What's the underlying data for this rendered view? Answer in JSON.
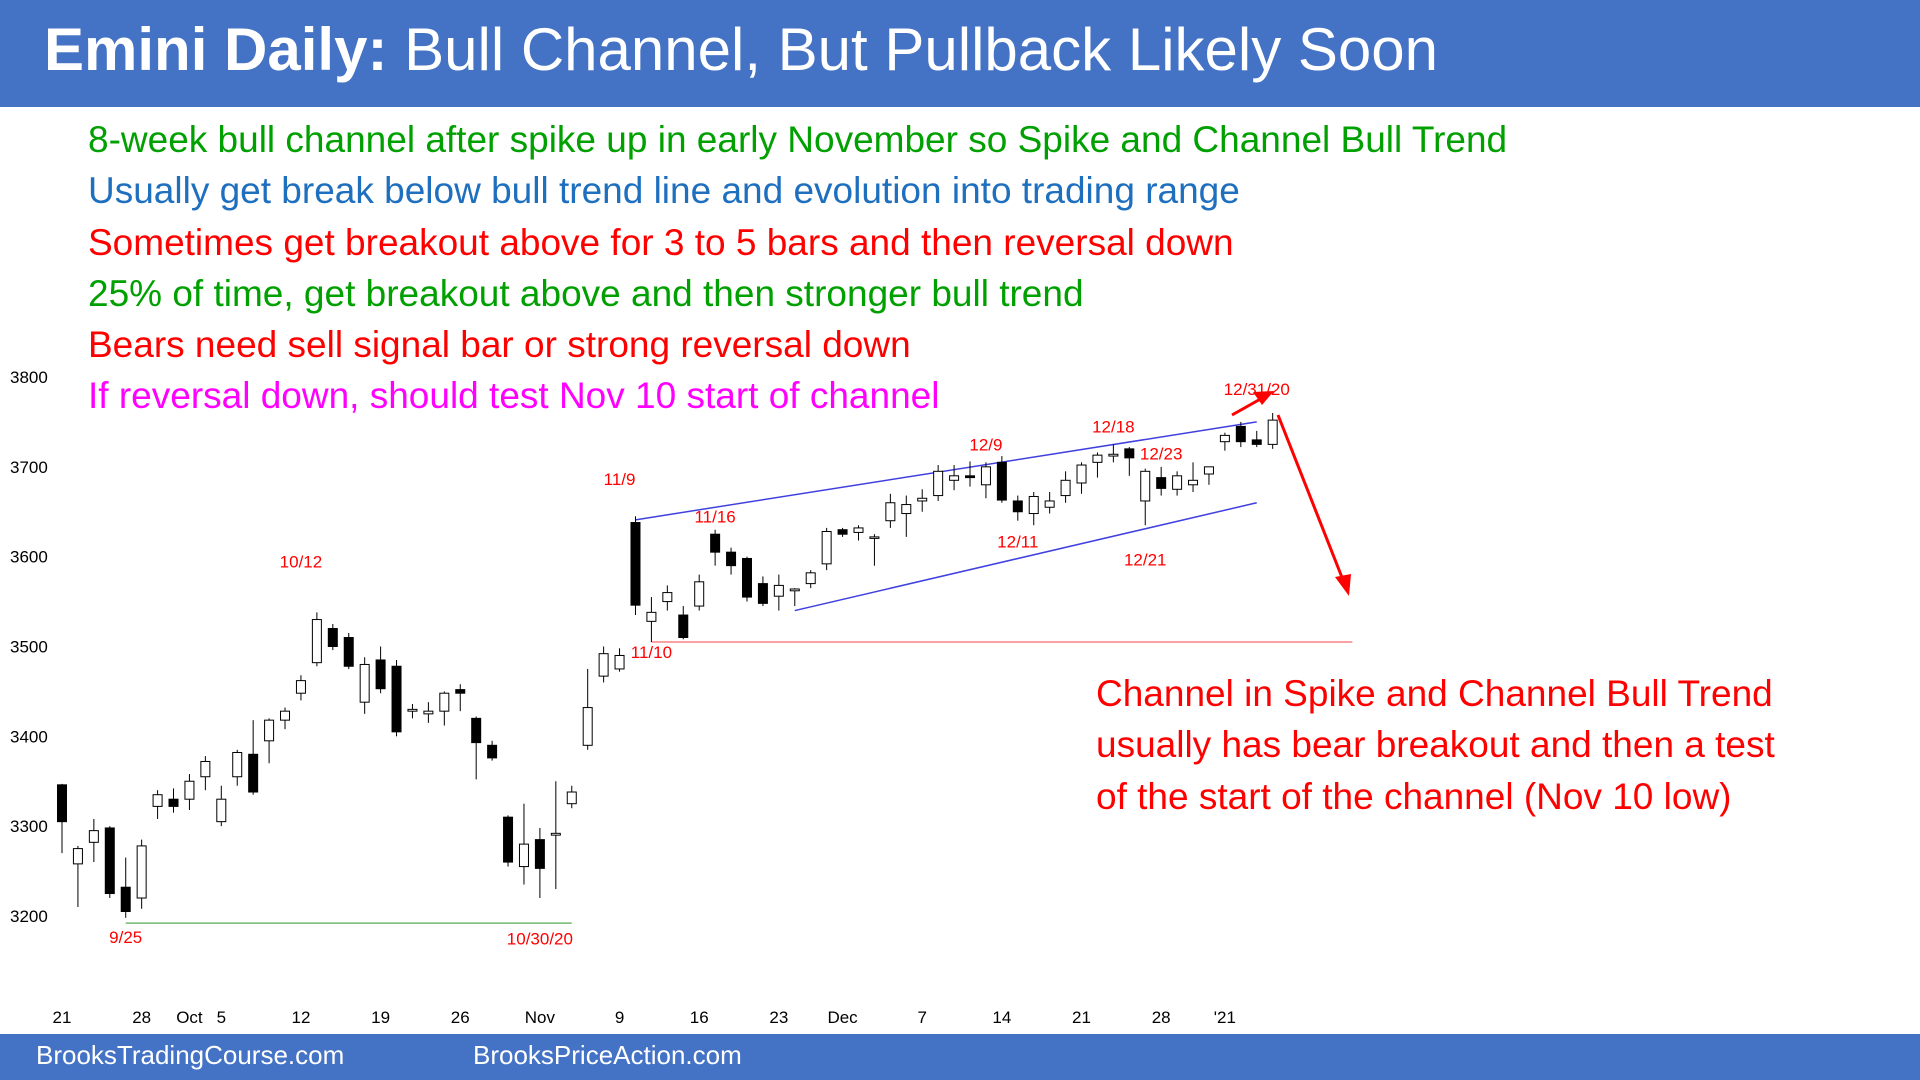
{
  "title": {
    "bold": "Emini Daily:",
    "rest": "Bull Channel, But Pullback Likely Soon"
  },
  "notes": [
    {
      "text": "8-week bull channel after spike up in early November so Spike and Channel Bull Trend",
      "color": "#00a000"
    },
    {
      "text": "Usually get break below bull trend line and evolution into trading range",
      "color": "#1f6fbf"
    },
    {
      "text": "Sometimes get breakout above for 3 to 5 bars and then reversal down",
      "color": "#ff0000"
    },
    {
      "text": "25% of time, get breakout above and then stronger bull trend",
      "color": "#00a000"
    },
    {
      "text": "Bears need sell signal bar or strong reversal down",
      "color": "#ff0000"
    },
    {
      "text": "If reversal down, should test Nov 10 start of channel",
      "color": "#ff00ff"
    }
  ],
  "callout": [
    "Channel in Spike and Channel Bull Trend",
    "usually has bear breakout and then a test",
    "of the start of the channel (Nov 10 low)"
  ],
  "footer": {
    "left": "BrooksTradingCourse.com",
    "right": "BrooksPriceAction.com"
  },
  "colors": {
    "banner": "#4472c4",
    "bull_candle": "#ffffff",
    "bear_candle": "#000000",
    "channel": "#4040e0",
    "annotation": "#ff0000",
    "support": "#70b870"
  },
  "chart_data": {
    "type": "candlestick",
    "y_ticks": [
      3200,
      3300,
      3400,
      3500,
      3600,
      3700,
      3800
    ],
    "ylim": [
      3200,
      3800
    ],
    "x_tick_labels": [
      {
        "label": "21",
        "bar": 0
      },
      {
        "label": "28",
        "bar": 5
      },
      {
        "label": "Oct",
        "bar": 8
      },
      {
        "label": "5",
        "bar": 10
      },
      {
        "label": "12",
        "bar": 15
      },
      {
        "label": "19",
        "bar": 20
      },
      {
        "label": "26",
        "bar": 25
      },
      {
        "label": "Nov",
        "bar": 30
      },
      {
        "label": "9",
        "bar": 35
      },
      {
        "label": "16",
        "bar": 40
      },
      {
        "label": "23",
        "bar": 45
      },
      {
        "label": "Dec",
        "bar": 49
      },
      {
        "label": "7",
        "bar": 54
      },
      {
        "label": "14",
        "bar": 59
      },
      {
        "label": "21",
        "bar": 64
      },
      {
        "label": "28",
        "bar": 69
      },
      {
        "label": "'21",
        "bar": 73
      }
    ],
    "ohlc": [
      [
        3346,
        3347,
        3270,
        3305
      ],
      [
        3258,
        3278,
        3210,
        3275
      ],
      [
        3282,
        3308,
        3260,
        3295
      ],
      [
        3298,
        3300,
        3220,
        3225
      ],
      [
        3232,
        3265,
        3198,
        3205
      ],
      [
        3220,
        3285,
        3208,
        3278
      ],
      [
        3322,
        3340,
        3308,
        3335
      ],
      [
        3330,
        3342,
        3315,
        3322
      ],
      [
        3330,
        3358,
        3318,
        3350
      ],
      [
        3355,
        3378,
        3340,
        3372
      ],
      [
        3305,
        3345,
        3300,
        3330
      ],
      [
        3355,
        3385,
        3345,
        3382
      ],
      [
        3380,
        3418,
        3335,
        3338
      ],
      [
        3395,
        3420,
        3370,
        3418
      ],
      [
        3418,
        3432,
        3408,
        3428
      ],
      [
        3448,
        3468,
        3440,
        3462
      ],
      [
        3482,
        3538,
        3478,
        3530
      ],
      [
        3520,
        3525,
        3496,
        3500
      ],
      [
        3510,
        3515,
        3475,
        3478
      ],
      [
        3438,
        3488,
        3425,
        3480
      ],
      [
        3485,
        3500,
        3448,
        3453
      ],
      [
        3478,
        3485,
        3400,
        3405
      ],
      [
        3428,
        3436,
        3420,
        3430
      ],
      [
        3425,
        3438,
        3415,
        3428
      ],
      [
        3428,
        3450,
        3412,
        3448
      ],
      [
        3452,
        3458,
        3428,
        3448
      ],
      [
        3420,
        3422,
        3352,
        3393
      ],
      [
        3390,
        3395,
        3373,
        3376
      ],
      [
        3310,
        3312,
        3255,
        3260
      ],
      [
        3255,
        3325,
        3235,
        3280
      ],
      [
        3285,
        3298,
        3220,
        3253
      ],
      [
        3290,
        3350,
        3230,
        3292
      ],
      [
        3325,
        3345,
        3320,
        3338
      ],
      [
        3390,
        3475,
        3385,
        3432
      ],
      [
        3467,
        3500,
        3460,
        3492
      ],
      [
        3475,
        3498,
        3472,
        3490
      ],
      [
        3638,
        3645,
        3535,
        3546
      ],
      [
        3528,
        3555,
        3505,
        3538
      ],
      [
        3550,
        3568,
        3540,
        3560
      ],
      [
        3535,
        3545,
        3508,
        3510
      ],
      [
        3545,
        3580,
        3540,
        3572
      ],
      [
        3625,
        3630,
        3590,
        3605
      ],
      [
        3605,
        3610,
        3580,
        3590
      ],
      [
        3598,
        3600,
        3550,
        3555
      ],
      [
        3570,
        3578,
        3545,
        3548
      ],
      [
        3556,
        3580,
        3540,
        3568
      ],
      [
        3562,
        3565,
        3545,
        3564
      ],
      [
        3570,
        3585,
        3565,
        3582
      ],
      [
        3592,
        3632,
        3585,
        3628
      ],
      [
        3630,
        3632,
        3622,
        3625
      ],
      [
        3627,
        3635,
        3618,
        3632
      ],
      [
        3622,
        3625,
        3590,
        3622
      ],
      [
        3640,
        3670,
        3632,
        3660
      ],
      [
        3648,
        3668,
        3622,
        3658
      ],
      [
        3662,
        3675,
        3650,
        3665
      ],
      [
        3668,
        3702,
        3662,
        3695
      ],
      [
        3685,
        3702,
        3674,
        3690
      ],
      [
        3690,
        3706,
        3678,
        3688
      ],
      [
        3680,
        3705,
        3665,
        3700
      ],
      [
        3705,
        3712,
        3660,
        3663
      ],
      [
        3662,
        3668,
        3640,
        3650
      ],
      [
        3648,
        3672,
        3635,
        3667
      ],
      [
        3655,
        3672,
        3648,
        3662
      ],
      [
        3668,
        3695,
        3660,
        3685
      ],
      [
        3682,
        3705,
        3670,
        3702
      ],
      [
        3705,
        3716,
        3688,
        3713
      ],
      [
        3712,
        3725,
        3705,
        3714
      ],
      [
        3720,
        3722,
        3690,
        3710
      ],
      [
        3662,
        3698,
        3635,
        3695
      ],
      [
        3688,
        3700,
        3668,
        3676
      ],
      [
        3675,
        3695,
        3668,
        3690
      ],
      [
        3680,
        3705,
        3672,
        3685
      ],
      [
        3692,
        3700,
        3680,
        3700
      ],
      [
        3728,
        3738,
        3718,
        3735
      ],
      [
        3745,
        3750,
        3722,
        3728
      ],
      [
        3730,
        3740,
        3722,
        3725
      ],
      [
        3725,
        3760,
        3720,
        3752
      ]
    ],
    "point_labels": [
      {
        "text": "9/25",
        "bar": 4,
        "price": 3170,
        "color": "#ff0000"
      },
      {
        "text": "10/12",
        "bar": 15,
        "price": 3588,
        "color": "#ff0000"
      },
      {
        "text": "10/30/20",
        "bar": 30,
        "price": 3168,
        "color": "#ff0000"
      },
      {
        "text": "11/9",
        "bar": 35,
        "price": 3680,
        "color": "#ff0000"
      },
      {
        "text": "11/10",
        "bar": 37,
        "price": 3487,
        "color": "#ff0000"
      },
      {
        "text": "11/16",
        "bar": 41,
        "price": 3638,
        "color": "#ff0000"
      },
      {
        "text": "12/9",
        "bar": 58,
        "price": 3718,
        "color": "#ff0000"
      },
      {
        "text": "12/11",
        "bar": 60,
        "price": 3610,
        "color": "#ff0000"
      },
      {
        "text": "12/18",
        "bar": 66,
        "price": 3738,
        "color": "#ff0000"
      },
      {
        "text": "12/21",
        "bar": 68,
        "price": 3590,
        "color": "#ff0000"
      },
      {
        "text": "12/23",
        "bar": 69,
        "price": 3708,
        "color": "#ff0000"
      },
      {
        "text": "12/31/20",
        "bar": 75,
        "price": 3780,
        "color": "#ff0000"
      }
    ],
    "lines": [
      {
        "name": "channel-upper",
        "from": {
          "bar": 36,
          "price": 3641
        },
        "to": {
          "bar": 75,
          "price": 3750
        },
        "color": "#4040e0"
      },
      {
        "name": "channel-lower",
        "from": {
          "bar": 46,
          "price": 3540
        },
        "to": {
          "bar": 75,
          "price": 3660
        },
        "color": "#4040e0"
      },
      {
        "name": "nov-10-low-line",
        "from": {
          "bar": 37,
          "price": 3505
        },
        "to": {
          "bar": 81,
          "price": 3505
        },
        "color": "#ff8080"
      },
      {
        "name": "sep-25-low-line",
        "from": {
          "bar": 4,
          "price": 3192
        },
        "to": {
          "bar": 32,
          "price": 3192
        },
        "color": "#70b870"
      }
    ]
  }
}
